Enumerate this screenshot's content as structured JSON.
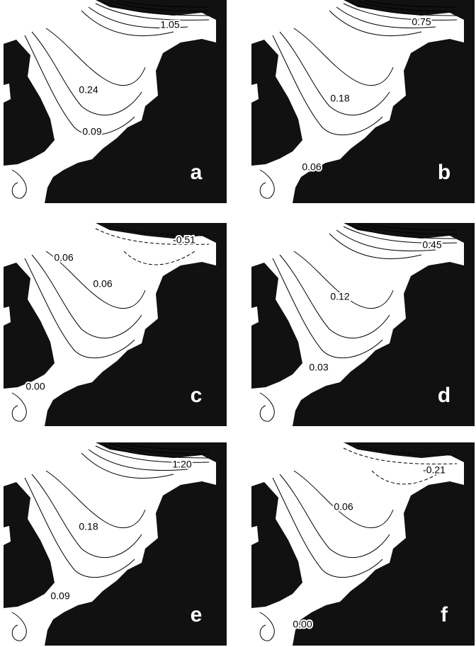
{
  "panels": [
    {
      "letter": "a",
      "contour_labels": [
        "1.05",
        "0.24",
        "0.09"
      ]
    },
    {
      "letter": "b",
      "contour_labels": [
        "0.75",
        "0.18",
        "0.06"
      ]
    },
    {
      "letter": "c",
      "contour_labels": [
        "-0.51",
        "0.06",
        "0.06",
        "0.00"
      ]
    },
    {
      "letter": "d",
      "contour_labels": [
        "0.45",
        "0.12",
        "0.03"
      ]
    },
    {
      "letter": "e",
      "contour_labels": [
        "1.20",
        "0.18",
        "0.09"
      ]
    },
    {
      "letter": "f",
      "contour_labels": [
        "-0.21",
        "0.06",
        "0.00"
      ]
    }
  ]
}
